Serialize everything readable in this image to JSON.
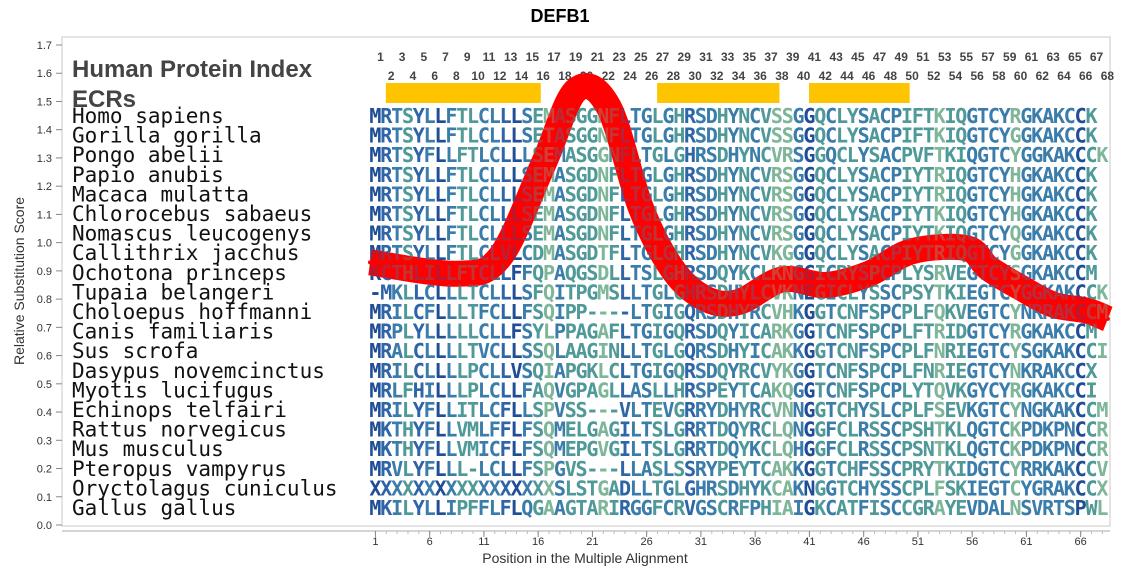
{
  "chart_data": {
    "type": "line",
    "title": "DEFB1",
    "xlabel": "Position in the Multiple Alignment",
    "ylabel": "Relative Substitution Score",
    "ylim": [
      0.0,
      1.7
    ],
    "y_ticks": [
      "0.0",
      "0.1",
      "0.2",
      "0.3",
      "0.4",
      "0.5",
      "0.6",
      "0.7",
      "0.8",
      "0.9",
      "1.0",
      "1.1",
      "1.2",
      "1.3",
      "1.4",
      "1.5",
      "1.6",
      "1.7"
    ],
    "x_ticks": [
      "1",
      "6",
      "11",
      "16",
      "21",
      "26",
      "31",
      "36",
      "41",
      "46",
      "51",
      "56",
      "61",
      "66"
    ],
    "position_labels_odd": [
      "1",
      "3",
      "5",
      "7",
      "9",
      "11",
      "13",
      "15",
      "17",
      "19",
      "21",
      "23",
      "25",
      "27",
      "29",
      "31",
      "33",
      "35",
      "37",
      "39",
      "41",
      "43",
      "45",
      "47",
      "49",
      "51",
      "53",
      "55",
      "57",
      "59",
      "61",
      "63",
      "65",
      "67"
    ],
    "position_labels_even": [
      "2",
      "4",
      "6",
      "8",
      "10",
      "12",
      "14",
      "16",
      "18",
      "20",
      "22",
      "24",
      "26",
      "28",
      "30",
      "32",
      "34",
      "36",
      "38",
      "40",
      "42",
      "44",
      "46",
      "48",
      "50",
      "52",
      "54",
      "56",
      "58",
      "60",
      "62",
      "64",
      "66",
      "68"
    ],
    "heading_lines": [
      "Human Protein Index",
      "ECRs"
    ],
    "ecr_regions": [
      [
        2,
        15
      ],
      [
        27,
        37
      ],
      [
        41,
        49
      ]
    ],
    "ecr_color": "#ffc400",
    "score_line": {
      "name": "Relative Substitution Score",
      "color": "#ff0000",
      "x": [
        0,
        8,
        12,
        16,
        19,
        22,
        25,
        28,
        31,
        34,
        38,
        42,
        46,
        50,
        55,
        57,
        60,
        63,
        66,
        68
      ],
      "y": [
        0.93,
        0.89,
        0.95,
        1.28,
        1.54,
        1.48,
        1.12,
        0.9,
        0.8,
        0.79,
        0.87,
        0.85,
        0.89,
        0.97,
        0.98,
        0.91,
        0.84,
        0.78,
        0.76,
        0.73
      ]
    },
    "alignment": [
      {
        "species": "Homo sapiens",
        "seq": "MRTSYLLFTLCLLLSEMASGGNFLTGLGHRSDHYNCVSSGGQCLYSACPIFTKIQGTCYRGKAKCCK"
      },
      {
        "species": "Gorilla gorilla",
        "seq": "MRTSYLLFTLCLLLSETASGGNFLTGLGHRSDHYNCVSSGGQCLYSACPIFTKIQGTCYGGKAKCCK"
      },
      {
        "species": "Pongo abelii",
        "seq": "MRTSYFLLFTLCLLLSEMASGGNFLTGLGHRSDHYNCVRSGGQCLYSACPVFTKIQGTCYGGKAKCCK"
      },
      {
        "species": "Papio anubis",
        "seq": "MRTSYLLFTLCLLLSEMASGDNFLTGLGHRSDHYNCVRSGGQCLYSACPIYTRIQGTCYHGKAKCCK"
      },
      {
        "species": "Macaca mulatta",
        "seq": "MRTSYLLFTLCLLLSEMASGDNFLTGLGHRSDHYNCVRSGGQCLYSACPIYTRIQGTCYHGKAKCCK"
      },
      {
        "species": "Chlorocebus sabaeus",
        "seq": "MRTSYLLFTLCLLLSEMASGDNFLTGLGHRSDHYNCVRSGGQCLYSACPIYTKIQGTCYHGKAKCCK"
      },
      {
        "species": "Nomascus leucogenys",
        "seq": "MRTSYLLFTLCLLLSEMASGDNFLTGLGHRSDHYNCVRSGGQCLYSACPIYTKIQGTCYQGKAKCCK"
      },
      {
        "species": "Callithrix jacchus",
        "seq": "MRTSYLLFTLCLVLCDMASGDTFLTGLGHRSDHYNCVKGGGQCLYSACPIYTRIQGTCYGGKAKCCK"
      },
      {
        "species": "Ochotona princeps",
        "seq": "KCTHLILLFTCLLFFQPAQGSDLLTSLGHRSDQYKCLKNGGICRYSPCPLYSRVEGTCYSGKAKCCM"
      },
      {
        "species": "Tupaia belangeri",
        "seq": "-MKLLCLLLTCLLLSFQITPGMSLLTGLGHRSDHYLCVKNEGICLYSSCPSYTKIEGTCYGGKAKCCK"
      },
      {
        "species": "Choloepus hoffmanni",
        "seq": "MRILCFLLLTFCLLFSQIPP----LTGIGQRSDHYRCVHKGGTCNFSPCPLFQKVEGTCYNRRAKCCM"
      },
      {
        "species": "Canis familiaris",
        "seq": "MRPLYLLLLLCLLFSYLPPAGAFLTGIGQRSDQYICARKGGTCNFSPCPLFTRIDGTCYRGKAKCCM"
      },
      {
        "species": "Sus scrofa",
        "seq": "MRALCLLLLTVCLLSSQLAAGINLLTGLGQRSDHYICAKKGGTCNFSPCPLFNRIEGTCYSGKAKCCI"
      },
      {
        "species": "Dasypus novemcinctus",
        "seq": "MRILCLLLLPCLLVSQIAPGKLCLTGIGQRSDQYRCVYKGGTCNFSPCPLFNRIEGTCYNKRAKCCX"
      },
      {
        "species": "Myotis lucifugus",
        "seq": "MRLFHILLLPLCLLFAQVGPAGLLASLLHRSPEYTCAKQGGTCNFSPCPLYTQVKGYCYRGKAKCCI"
      },
      {
        "species": "Echinops telfairi",
        "seq": "MRILYFLLITLCFLLSPVSS---VLTEVGRRYDHYRCVNNGGTCHYSLCPLFSEVKGTCYNGKAKCCM"
      },
      {
        "species": "Rattus norvegicus",
        "seq": "MKTHYFLLVMLFFLFSQMELGAGILTSLGRRTDQYRCLQNGGFCLRSSCPSHTKLQGTCKPDKPNCCR"
      },
      {
        "species": "Mus musculus",
        "seq": "MKTHYFLLVMICFLFSQMEPGVGILTSLGRRTDQYKCLQHGGFCLRSSCPSNTKLQGTCKPDKPNCCR"
      },
      {
        "species": "Pteropus vampyrus",
        "seq": "MRVLYFLLL-LCLLFSPGVS---LLASLSSRYPEYTCAKKGGTCHFSSCPRYTKIDGTCYRRKAKCCV"
      },
      {
        "species": "Oryctolagus cuniculus",
        "seq": "XXXXXXXXXXXXXXXXXSLSTGADLLTGLGHRSDHYKCAKNGGTCHYSSCPLFSKIEGTCYGRAKCCX"
      },
      {
        "species": "Gallus gallus",
        "seq": "MKILYLLIPFFLFLQGAAGTARIRGGFCRVGSCRFPHIAIGKCATFISCCGRAYEVDALNSVRTSPWL"
      }
    ]
  }
}
